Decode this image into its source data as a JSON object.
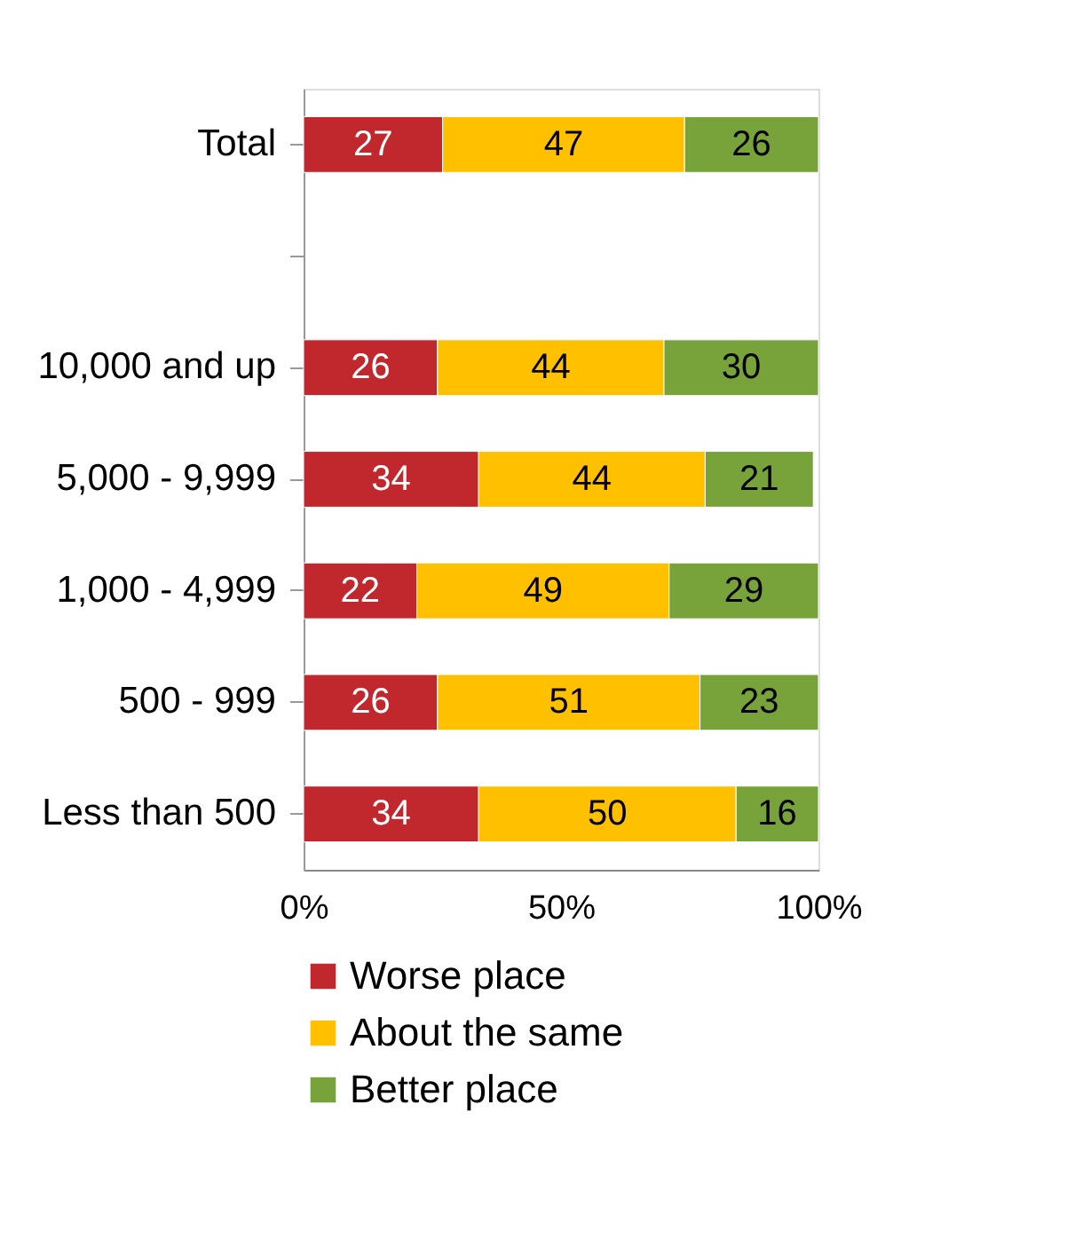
{
  "chart_data": {
    "type": "bar",
    "orientation": "horizontal",
    "stacked": true,
    "categories": [
      "Total",
      null,
      "10,000 and up",
      "5,000 - 9,999",
      "1,000 - 4,999",
      "500 - 999",
      "Less than 500"
    ],
    "series": [
      {
        "name": "Worse place",
        "color": "#c0282d",
        "values": [
          27,
          null,
          26,
          34,
          22,
          26,
          34
        ]
      },
      {
        "name": "About the same",
        "color": "#ffc000",
        "values": [
          47,
          null,
          44,
          44,
          49,
          51,
          50
        ]
      },
      {
        "name": "Better place",
        "color": "#77a33a",
        "values": [
          26,
          null,
          30,
          21,
          29,
          23,
          16
        ]
      }
    ],
    "xlim": [
      0,
      100
    ],
    "xticks": [
      {
        "value": 0,
        "label": "0%"
      },
      {
        "value": 50,
        "label": "50%"
      },
      {
        "value": 100,
        "label": "100%"
      }
    ],
    "data_labels": true,
    "legend": "bottom",
    "grid": false
  }
}
